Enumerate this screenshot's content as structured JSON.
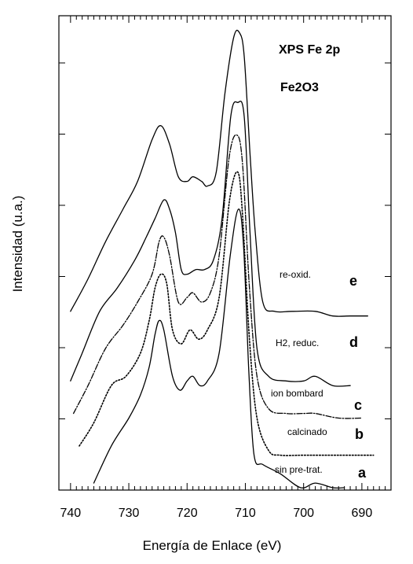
{
  "chart_data": {
    "type": "line",
    "title": "XPS  Fe 2p",
    "subtitle": "Fe2O3",
    "xlabel": "Energía de Enlace (eV)",
    "ylabel": "Intensidad (u.a.)",
    "xlim": [
      742,
      685
    ],
    "x_reversed": true,
    "ylim": [
      0,
      1
    ],
    "x_ticks": [
      740,
      730,
      720,
      710,
      700,
      690
    ],
    "x_tick_labels": [
      "740",
      "730",
      "720",
      "710",
      "700",
      "690"
    ],
    "grid": false,
    "series": [
      {
        "id": "a",
        "label": "sin pre-trat.",
        "letter": "a",
        "style": "solid",
        "points": [
          [
            736,
            0.01
          ],
          [
            733,
            0.09
          ],
          [
            730,
            0.15
          ],
          [
            728,
            0.2
          ],
          [
            726.5,
            0.26
          ],
          [
            725.5,
            0.33
          ],
          [
            724.8,
            0.36
          ],
          [
            724,
            0.34
          ],
          [
            722.5,
            0.24
          ],
          [
            721.2,
            0.21
          ],
          [
            720,
            0.23
          ],
          [
            719,
            0.24
          ],
          [
            717.8,
            0.22
          ],
          [
            716.5,
            0.23
          ],
          [
            714.5,
            0.29
          ],
          [
            712.6,
            0.5
          ],
          [
            711.2,
            0.6
          ],
          [
            710.3,
            0.52
          ],
          [
            709.4,
            0.25
          ],
          [
            708.5,
            0.07
          ],
          [
            707,
            0.05
          ],
          [
            704,
            0.03
          ],
          [
            700.5,
            0.0
          ],
          [
            698,
            0.01
          ],
          [
            695,
            0.0
          ],
          [
            693,
            0.0
          ]
        ]
      },
      {
        "id": "b",
        "label": "calcinado",
        "letter": "b",
        "style": "dotted",
        "points": [
          [
            738.5,
            0.09
          ],
          [
            736,
            0.14
          ],
          [
            733,
            0.22
          ],
          [
            730.5,
            0.24
          ],
          [
            728,
            0.29
          ],
          [
            726.5,
            0.36
          ],
          [
            725.5,
            0.43
          ],
          [
            724.5,
            0.46
          ],
          [
            723.5,
            0.44
          ],
          [
            722.5,
            0.34
          ],
          [
            721,
            0.31
          ],
          [
            719.5,
            0.34
          ],
          [
            718,
            0.32
          ],
          [
            716.5,
            0.34
          ],
          [
            714.5,
            0.41
          ],
          [
            712.7,
            0.62
          ],
          [
            711.3,
            0.68
          ],
          [
            710.5,
            0.59
          ],
          [
            709.3,
            0.32
          ],
          [
            708,
            0.15
          ],
          [
            706,
            0.08
          ],
          [
            704,
            0.07
          ],
          [
            700,
            0.07
          ],
          [
            694,
            0.07
          ],
          [
            688,
            0.07
          ]
        ]
      },
      {
        "id": "c",
        "label": "ion bombard",
        "letter": "c",
        "style": "dashdot",
        "points": [
          [
            739.5,
            0.16
          ],
          [
            737,
            0.22
          ],
          [
            734,
            0.3
          ],
          [
            731,
            0.35
          ],
          [
            728.5,
            0.4
          ],
          [
            726,
            0.46
          ],
          [
            724.8,
            0.53
          ],
          [
            724,
            0.54
          ],
          [
            723,
            0.5
          ],
          [
            721.5,
            0.4
          ],
          [
            720,
            0.41
          ],
          [
            719,
            0.42
          ],
          [
            717.5,
            0.4
          ],
          [
            716,
            0.42
          ],
          [
            714.5,
            0.5
          ],
          [
            712.8,
            0.71
          ],
          [
            711.5,
            0.76
          ],
          [
            710.5,
            0.7
          ],
          [
            709.3,
            0.43
          ],
          [
            708,
            0.24
          ],
          [
            706,
            0.17
          ],
          [
            703,
            0.16
          ],
          [
            700,
            0.16
          ],
          [
            698,
            0.16
          ],
          [
            694,
            0.15
          ],
          [
            690,
            0.15
          ]
        ]
      },
      {
        "id": "d",
        "label": "H2, reduc.",
        "letter": "d",
        "style": "solid",
        "points": [
          [
            740,
            0.23
          ],
          [
            738,
            0.29
          ],
          [
            735,
            0.38
          ],
          [
            732,
            0.43
          ],
          [
            729,
            0.49
          ],
          [
            727,
            0.54
          ],
          [
            725.5,
            0.58
          ],
          [
            724,
            0.62
          ],
          [
            723,
            0.6
          ],
          [
            722,
            0.55
          ],
          [
            721,
            0.47
          ],
          [
            720,
            0.46
          ],
          [
            718.5,
            0.47
          ],
          [
            717,
            0.47
          ],
          [
            715.5,
            0.49
          ],
          [
            714,
            0.58
          ],
          [
            712.5,
            0.8
          ],
          [
            711.3,
            0.83
          ],
          [
            710.2,
            0.8
          ],
          [
            709.2,
            0.55
          ],
          [
            708,
            0.3
          ],
          [
            706,
            0.24
          ],
          [
            703,
            0.23
          ],
          [
            700,
            0.23
          ],
          [
            698,
            0.24
          ],
          [
            695,
            0.22
          ],
          [
            692,
            0.22
          ]
        ]
      },
      {
        "id": "e",
        "label": "re-oxid.",
        "letter": "e",
        "style": "solid",
        "points": [
          [
            740,
            0.38
          ],
          [
            737,
            0.45
          ],
          [
            734,
            0.53
          ],
          [
            731,
            0.6
          ],
          [
            728.5,
            0.66
          ],
          [
            726,
            0.75
          ],
          [
            724.5,
            0.78
          ],
          [
            723,
            0.74
          ],
          [
            721.5,
            0.67
          ],
          [
            720,
            0.66
          ],
          [
            719,
            0.67
          ],
          [
            717.5,
            0.66
          ],
          [
            716.5,
            0.65
          ],
          [
            715,
            0.68
          ],
          [
            713.5,
            0.85
          ],
          [
            712,
            0.97
          ],
          [
            711,
            0.98
          ],
          [
            710.2,
            0.93
          ],
          [
            709.2,
            0.72
          ],
          [
            708.3,
            0.55
          ],
          [
            707,
            0.4
          ],
          [
            705,
            0.38
          ],
          [
            702,
            0.38
          ],
          [
            698,
            0.38
          ],
          [
            695,
            0.37
          ],
          [
            692,
            0.37
          ],
          [
            689,
            0.37
          ]
        ]
      }
    ]
  }
}
